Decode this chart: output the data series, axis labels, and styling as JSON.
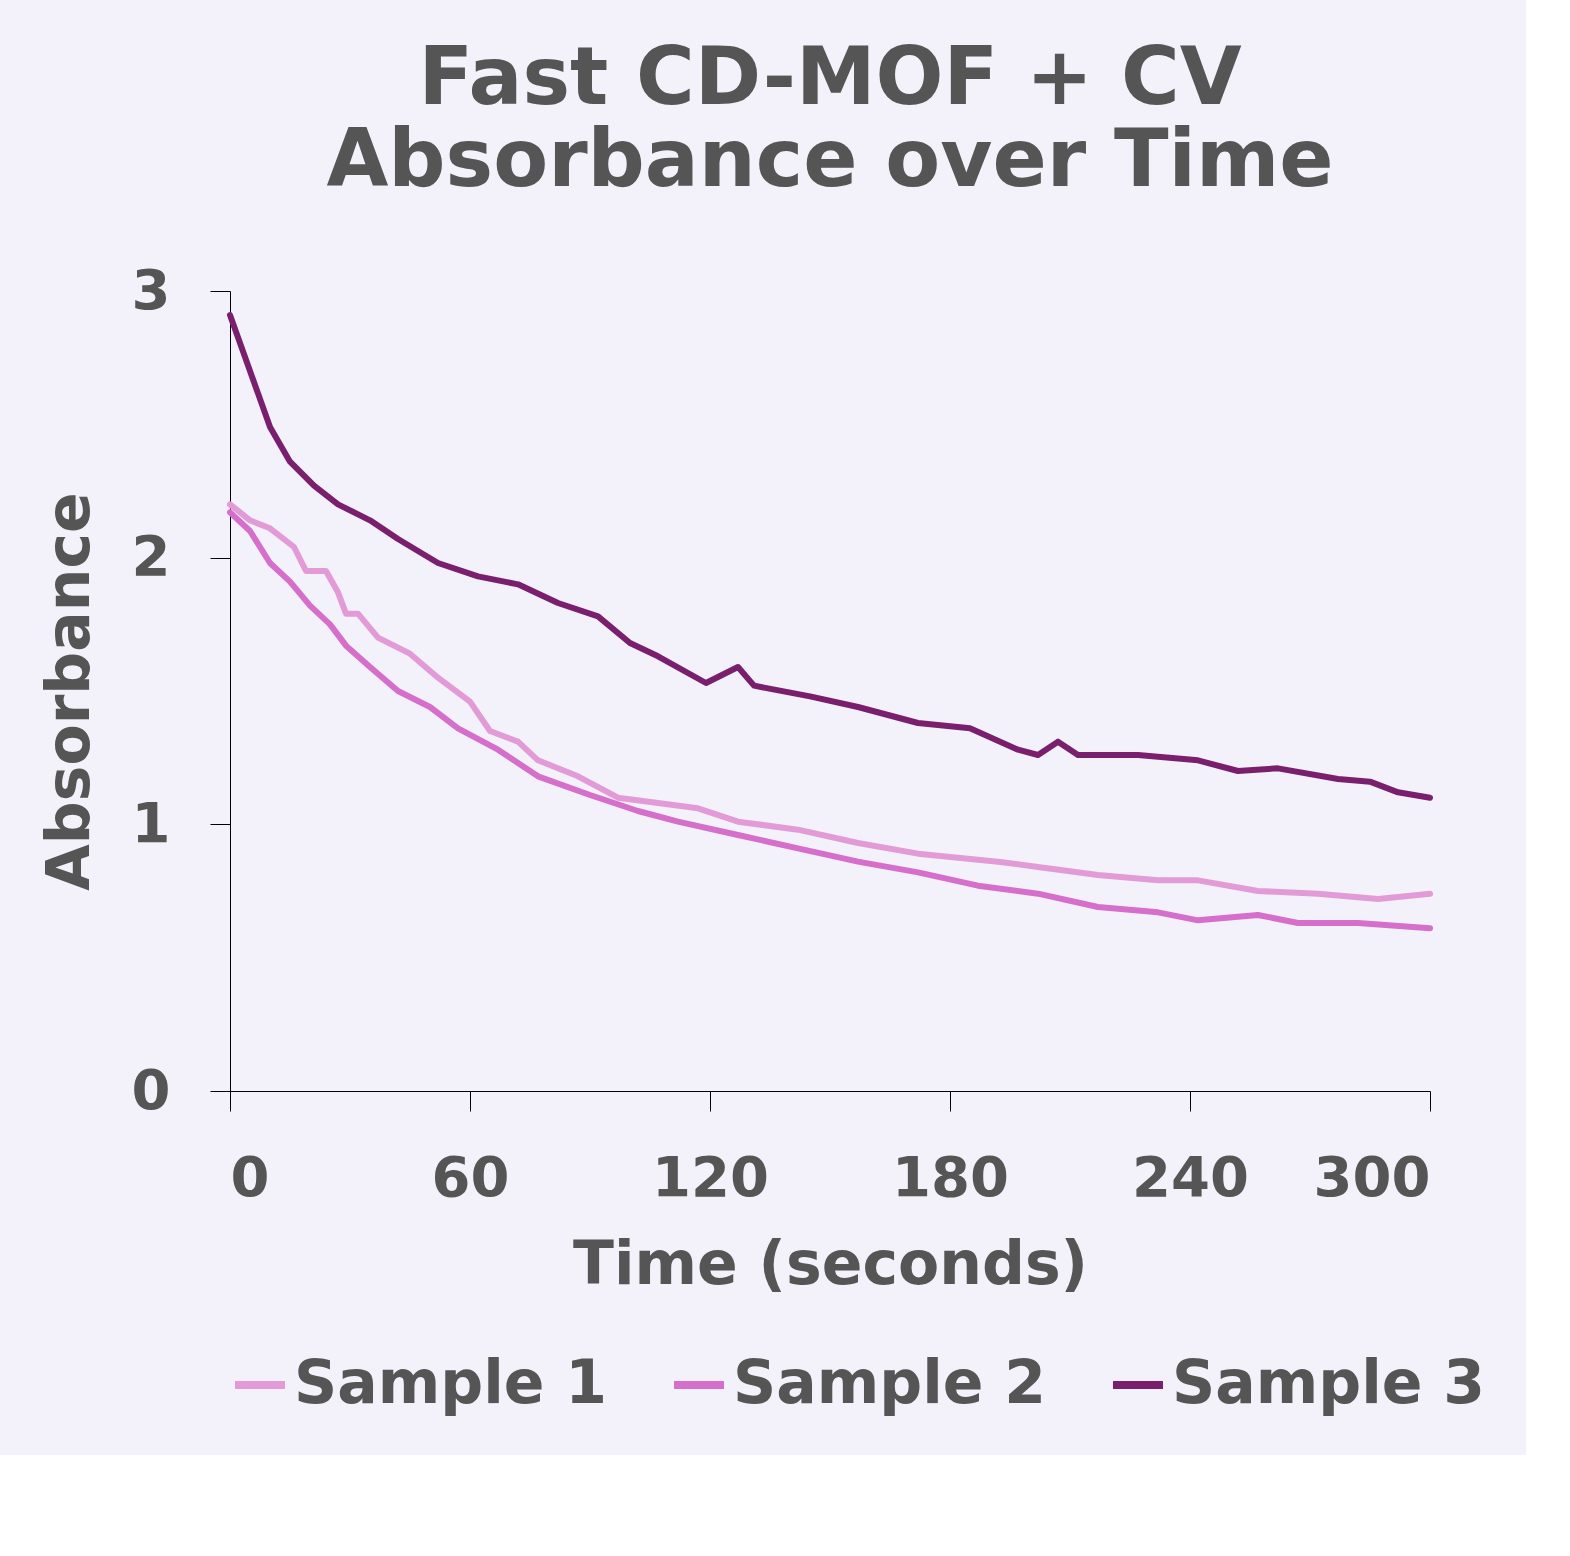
{
  "chart_data": {
    "type": "line",
    "title": [
      "Fast CD-MOF + CV",
      "Absorbance over Time"
    ],
    "xlabel": "Time (seconds)",
    "ylabel": "Absorbance",
    "xlim": [
      0,
      300
    ],
    "xticks": [
      0,
      60,
      120,
      180,
      240,
      300
    ],
    "ylim": [
      0,
      3
    ],
    "yticks": [
      0,
      1,
      2,
      3
    ],
    "grid": false,
    "legend": "bottom",
    "marker": "none",
    "line_style": "solid",
    "series": [
      {
        "name": "Sample 1",
        "color": "#e39bd8",
        "x": [
          0,
          5,
          10,
          16,
          19,
          24,
          27,
          29,
          32,
          37,
          45,
          52,
          60,
          65,
          72,
          77,
          87,
          97,
          107,
          117,
          127,
          142,
          157,
          172,
          192,
          202,
          217,
          232,
          242,
          257,
          272,
          287,
          300
        ],
        "values": [
          2.2,
          2.14,
          2.11,
          2.04,
          1.95,
          1.95,
          1.87,
          1.79,
          1.79,
          1.7,
          1.64,
          1.55,
          1.46,
          1.35,
          1.31,
          1.24,
          1.18,
          1.1,
          1.08,
          1.06,
          1.01,
          0.98,
          0.93,
          0.89,
          0.86,
          0.84,
          0.81,
          0.79,
          0.79,
          0.75,
          0.74,
          0.72,
          0.74
        ]
      },
      {
        "name": "Sample 2",
        "color": "#d56fcb",
        "x": [
          0,
          5,
          10,
          15,
          20,
          25,
          29,
          35,
          42,
          50,
          57,
          67,
          77,
          90,
          102,
          112,
          127,
          142,
          157,
          172,
          187,
          202,
          217,
          232,
          242,
          257,
          267,
          282,
          300
        ],
        "values": [
          2.17,
          2.1,
          1.98,
          1.91,
          1.82,
          1.75,
          1.67,
          1.59,
          1.5,
          1.44,
          1.36,
          1.28,
          1.18,
          1.11,
          1.05,
          1.01,
          0.96,
          0.91,
          0.86,
          0.82,
          0.77,
          0.74,
          0.69,
          0.67,
          0.64,
          0.66,
          0.63,
          0.63,
          0.61
        ]
      },
      {
        "name": "Sample 3",
        "color": "#7a1f6e",
        "x": [
          0,
          5,
          10,
          15,
          21,
          27,
          35,
          42,
          52,
          62,
          72,
          82,
          92,
          100,
          107,
          119,
          127,
          131,
          145,
          157,
          172,
          185,
          197,
          202,
          207,
          212,
          227,
          242,
          252,
          262,
          277,
          285,
          292,
          300
        ],
        "values": [
          2.91,
          2.7,
          2.49,
          2.36,
          2.27,
          2.2,
          2.14,
          2.07,
          1.98,
          1.93,
          1.9,
          1.83,
          1.78,
          1.68,
          1.63,
          1.53,
          1.59,
          1.52,
          1.48,
          1.44,
          1.38,
          1.36,
          1.28,
          1.26,
          1.31,
          1.26,
          1.26,
          1.24,
          1.2,
          1.21,
          1.17,
          1.16,
          1.12,
          1.1
        ]
      }
    ]
  }
}
